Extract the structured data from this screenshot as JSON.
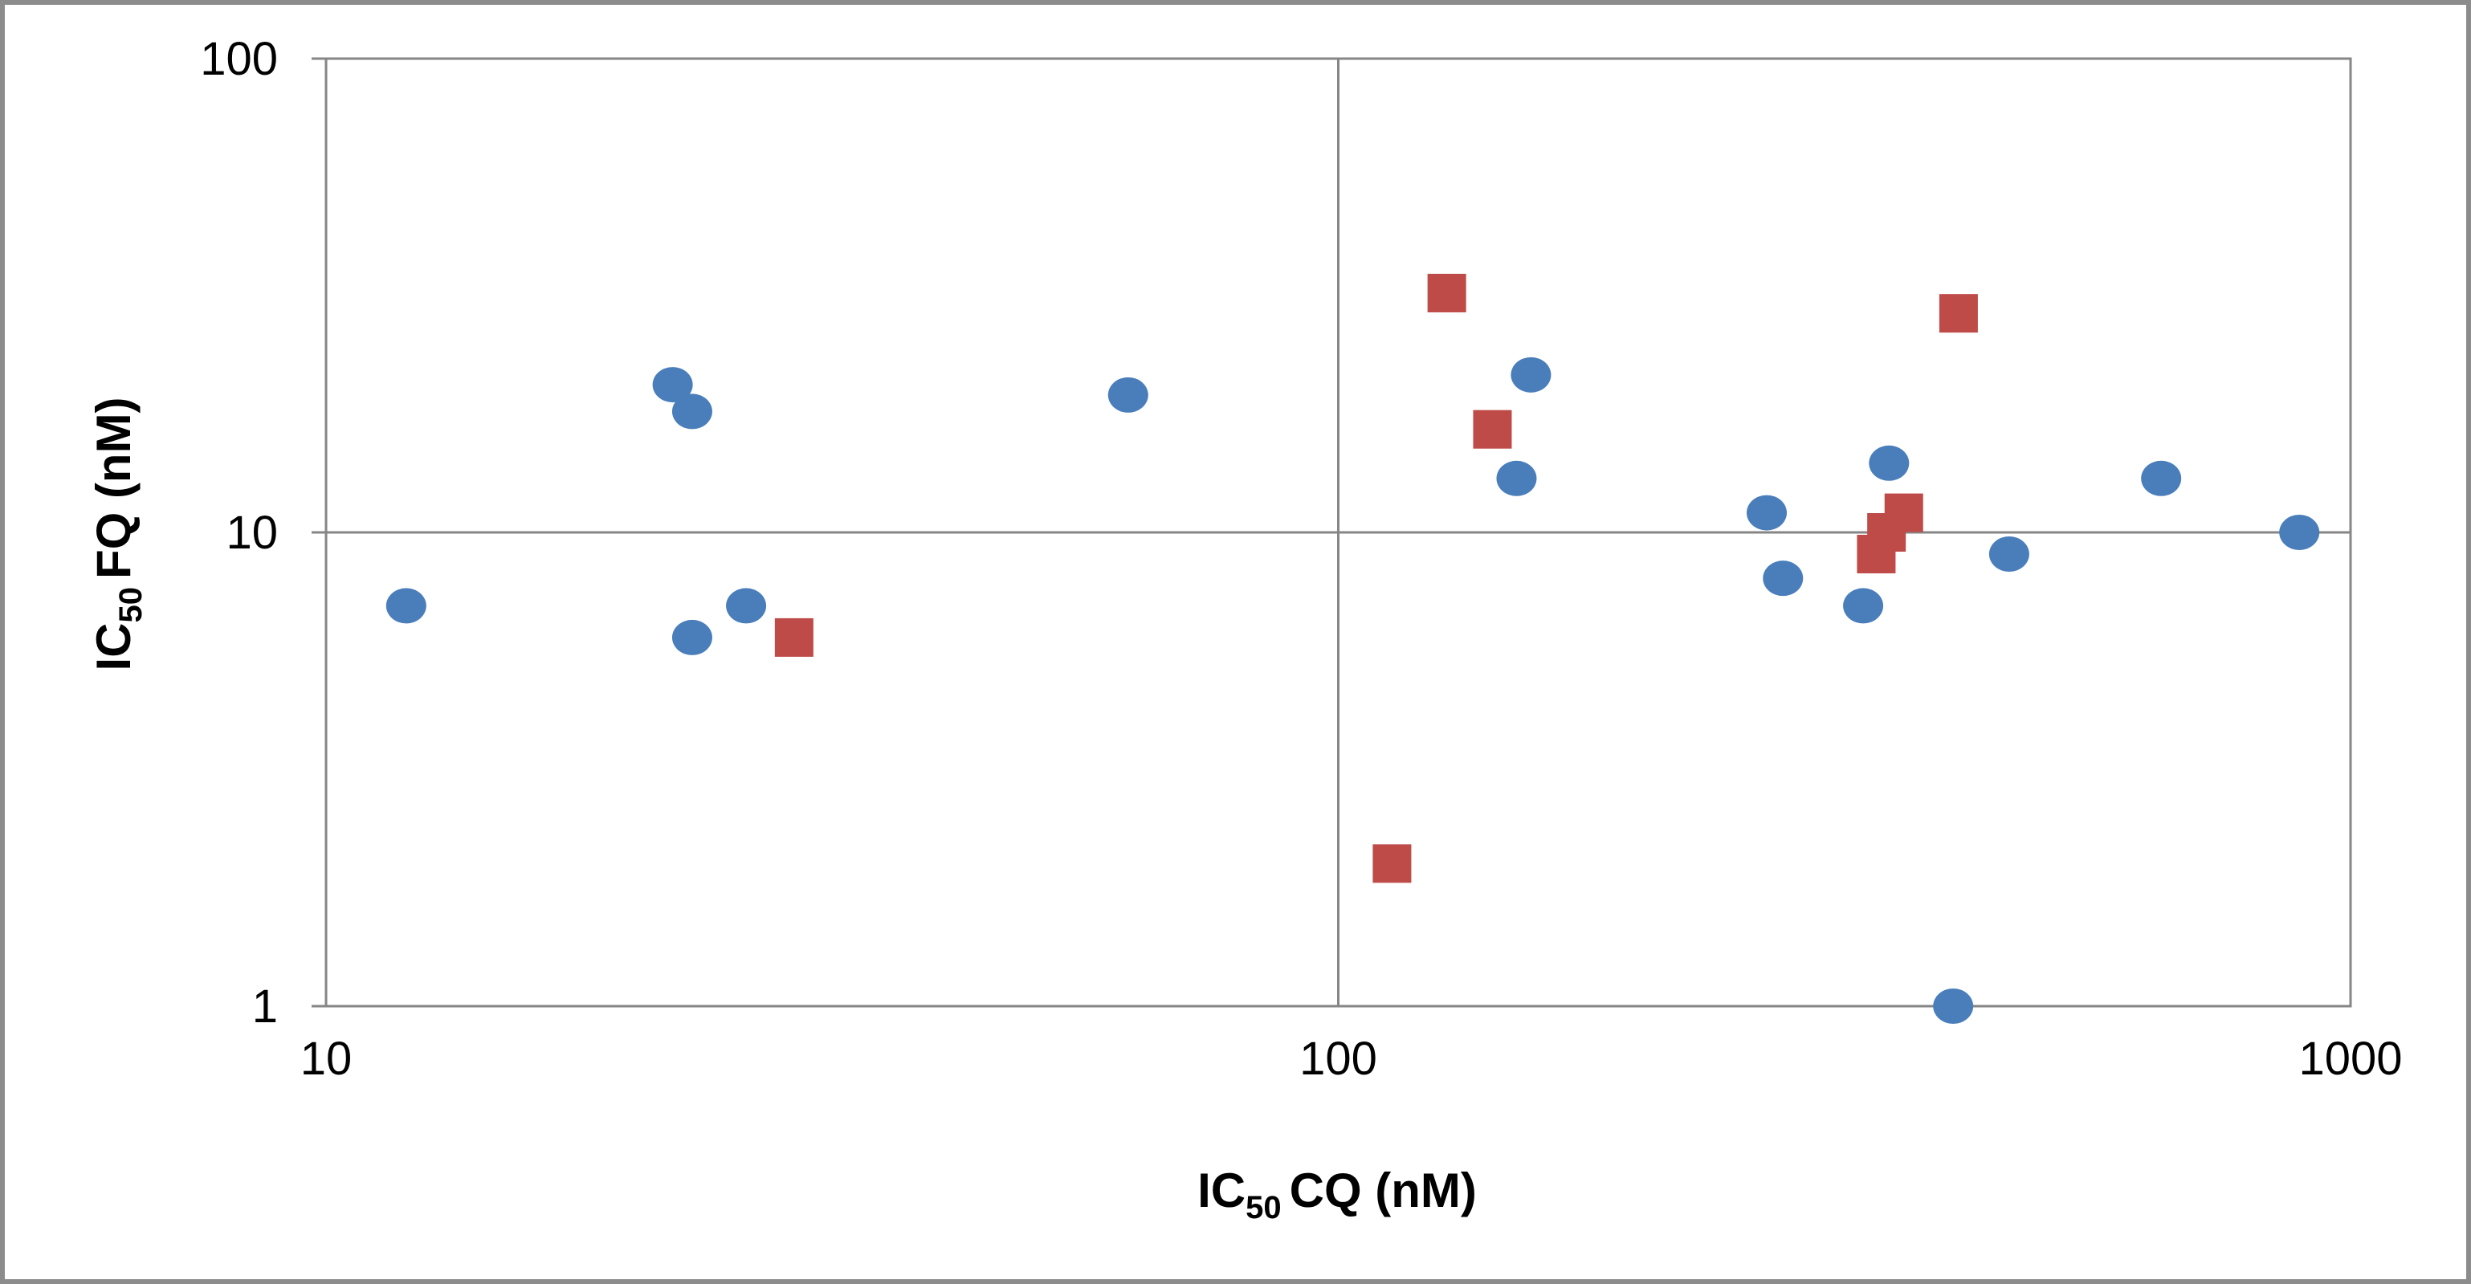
{
  "chart_data": {
    "type": "scatter",
    "xscale": "log",
    "yscale": "log",
    "xlim": [
      10,
      1000
    ],
    "ylim": [
      1,
      100
    ],
    "grid": true,
    "legend": "none",
    "x_ticks": [
      "10",
      "100",
      "1000"
    ],
    "y_ticks": [
      "1",
      "10",
      "100"
    ],
    "xlabel": {
      "main": "IC",
      "sub": "50",
      "rest": "CQ (nM)"
    },
    "ylabel": {
      "main": "IC",
      "sub": "50",
      "rest": "FQ (nM)"
    },
    "series": [
      {
        "marker": "circle",
        "color": "#4a7ebb",
        "points": [
          {
            "x": 12,
            "y": 7
          },
          {
            "x": 22,
            "y": 20.5
          },
          {
            "x": 23,
            "y": 18
          },
          {
            "x": 23,
            "y": 6
          },
          {
            "x": 26,
            "y": 7
          },
          {
            "x": 62,
            "y": 19.5
          },
          {
            "x": 150,
            "y": 13
          },
          {
            "x": 155,
            "y": 21.5
          },
          {
            "x": 265,
            "y": 11
          },
          {
            "x": 275,
            "y": 8
          },
          {
            "x": 330,
            "y": 7
          },
          {
            "x": 350,
            "y": 14
          },
          {
            "x": 405,
            "y": 1
          },
          {
            "x": 460,
            "y": 9
          },
          {
            "x": 650,
            "y": 13
          },
          {
            "x": 890,
            "y": 10
          }
        ]
      },
      {
        "marker": "square",
        "color": "#be4b48",
        "points": [
          {
            "x": 29,
            "y": 6
          },
          {
            "x": 113,
            "y": 2
          },
          {
            "x": 128,
            "y": 32
          },
          {
            "x": 142,
            "y": 16.5
          },
          {
            "x": 340,
            "y": 9
          },
          {
            "x": 348,
            "y": 10
          },
          {
            "x": 362,
            "y": 11
          },
          {
            "x": 410,
            "y": 29
          }
        ]
      }
    ]
  }
}
